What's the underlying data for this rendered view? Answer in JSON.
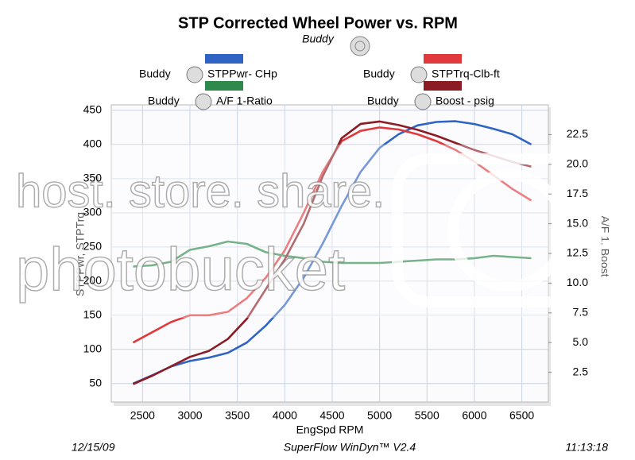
{
  "chart_data": {
    "type": "line",
    "title": "STP Corrected Wheel Power vs. RPM",
    "subtitle": "Buddy",
    "xlabel": "EngSpd  RPM",
    "ylabel": "STPPwr, STPTrq",
    "y2label": "A/F 1, Boost",
    "x": [
      2400,
      2600,
      2800,
      3000,
      3200,
      3400,
      3600,
      3800,
      4000,
      4200,
      4400,
      4600,
      4800,
      5000,
      5200,
      5400,
      5600,
      5800,
      6000,
      6200,
      6400,
      6600
    ],
    "series": [
      {
        "name": "STPPwr- CHp",
        "color": "#2f63c4",
        "values": [
          50,
          62,
          75,
          83,
          88,
          95,
          110,
          135,
          165,
          205,
          255,
          310,
          360,
          395,
          415,
          428,
          433,
          434,
          430,
          423,
          415,
          400
        ]
      },
      {
        "name": "STPTrq-Clb-ft",
        "color": "#e03a3c",
        "values": [
          110,
          125,
          140,
          150,
          150,
          155,
          175,
          205,
          245,
          300,
          360,
          405,
          420,
          425,
          422,
          415,
          405,
          392,
          375,
          355,
          335,
          318
        ]
      },
      {
        "name": "A/F 1-Ratio",
        "color": "#2e8a4a",
        "axis": "y2",
        "values": [
          11.4,
          11.5,
          11.8,
          12.8,
          13.1,
          13.5,
          13.3,
          12.6,
          12.3,
          12.1,
          11.8,
          11.7,
          11.7,
          11.7,
          11.8,
          11.9,
          12.0,
          12.0,
          12.1,
          12.3,
          12.2,
          12.1
        ]
      },
      {
        "name": "Boost - psig",
        "color": "#8c1c24",
        "axis": "y2",
        "values": [
          1.5,
          2.2,
          3.0,
          3.8,
          4.3,
          5.3,
          7.0,
          9.5,
          12.0,
          15.0,
          19.0,
          22.2,
          23.4,
          23.6,
          23.3,
          22.9,
          22.4,
          21.8,
          21.2,
          20.7,
          20.2,
          19.8
        ]
      }
    ],
    "xlim": [
      2170,
      6780
    ],
    "xticks": [
      2500,
      3000,
      3500,
      4000,
      4500,
      5000,
      5500,
      6000,
      6500
    ],
    "ylim": [
      23,
      458
    ],
    "yticks": [
      50,
      100,
      150,
      200,
      250,
      300,
      350,
      400,
      450
    ],
    "y2lim": [
      0,
      25
    ],
    "y2ticks": [
      2.5,
      {
        "value": 5,
        "label": "5.0"
      },
      7.5,
      {
        "value": 10,
        "label": "10.0"
      },
      12.5,
      {
        "value": 15,
        "label": "15.0"
      },
      17.5,
      {
        "value": 20,
        "label": "20.0"
      },
      22.5
    ],
    "grid": true,
    "footer_left": "12/15/09",
    "footer_center": "SuperFlow WinDyn™ V2.4",
    "footer_right": "11:13:18",
    "watermark": {
      "line1": "host. store. share.",
      "line2": "photobucket"
    }
  }
}
